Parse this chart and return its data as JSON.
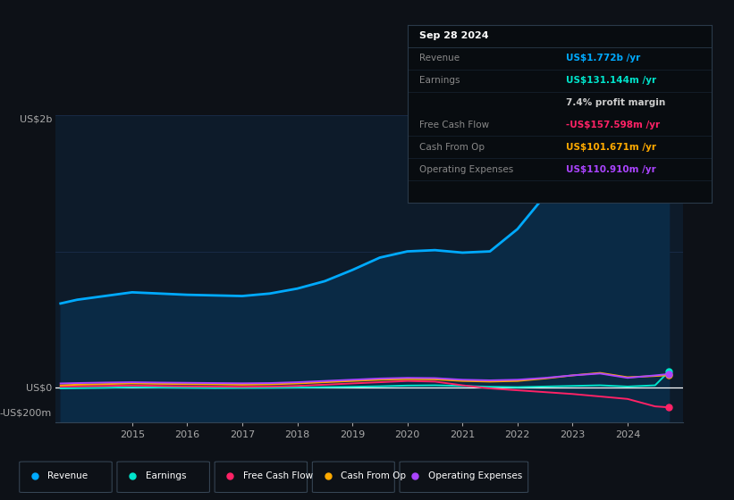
{
  "bg_color": "#0d1117",
  "plot_bg_color": "#0d1b2a",
  "grid_color": "#1e3050",
  "ylabel_top": "US$2b",
  "ylabel_zero": "US$0",
  "ylabel_neg": "-US$200m",
  "ylim": [
    -280000000,
    2200000000
  ],
  "xlim_left": 2013.6,
  "xlim_right": 2025.0,
  "revenue_color": "#00aaff",
  "earnings_color": "#00e5cc",
  "fcf_color": "#ff2266",
  "cashop_color": "#ffaa00",
  "opex_color": "#aa44ff",
  "revenue_fill_color": "#0a2a45",
  "legend_items": [
    "Revenue",
    "Earnings",
    "Free Cash Flow",
    "Cash From Op",
    "Operating Expenses"
  ],
  "x_years": [
    2013.7,
    2014.0,
    2014.5,
    2015.0,
    2015.5,
    2016.0,
    2016.5,
    2017.0,
    2017.5,
    2018.0,
    2018.5,
    2019.0,
    2019.5,
    2020.0,
    2020.5,
    2021.0,
    2021.5,
    2022.0,
    2022.5,
    2023.0,
    2023.5,
    2024.0,
    2024.5,
    2024.75
  ],
  "rev": [
    680000000,
    710000000,
    740000000,
    770000000,
    760000000,
    750000000,
    745000000,
    740000000,
    760000000,
    800000000,
    860000000,
    950000000,
    1050000000,
    1100000000,
    1110000000,
    1090000000,
    1100000000,
    1280000000,
    1550000000,
    1820000000,
    1870000000,
    1600000000,
    1700000000,
    1772000000
  ],
  "earn": [
    -5000000,
    -3000000,
    0,
    5000000,
    2000000,
    0,
    -2000000,
    -1000000,
    0,
    2000000,
    5000000,
    8000000,
    12000000,
    18000000,
    20000000,
    15000000,
    8000000,
    5000000,
    10000000,
    15000000,
    20000000,
    10000000,
    20000000,
    131144000
  ],
  "fcf": [
    10000000,
    12000000,
    15000000,
    18000000,
    15000000,
    12000000,
    10000000,
    8000000,
    10000000,
    15000000,
    25000000,
    35000000,
    45000000,
    55000000,
    50000000,
    20000000,
    -5000000,
    -20000000,
    -35000000,
    -50000000,
    -70000000,
    -90000000,
    -150000000,
    -157598000
  ],
  "cashop": [
    20000000,
    25000000,
    30000000,
    35000000,
    32000000,
    30000000,
    28000000,
    25000000,
    28000000,
    35000000,
    45000000,
    55000000,
    65000000,
    70000000,
    68000000,
    55000000,
    50000000,
    55000000,
    75000000,
    100000000,
    120000000,
    85000000,
    95000000,
    101671000
  ],
  "opex": [
    35000000,
    38000000,
    42000000,
    45000000,
    42000000,
    40000000,
    38000000,
    36000000,
    38000000,
    45000000,
    55000000,
    65000000,
    75000000,
    80000000,
    78000000,
    65000000,
    60000000,
    65000000,
    80000000,
    100000000,
    115000000,
    80000000,
    100000000,
    110910000
  ],
  "x_ticks": [
    2015,
    2016,
    2017,
    2018,
    2019,
    2020,
    2021,
    2022,
    2023,
    2024
  ],
  "tooltip_bg": "#080c10",
  "tooltip_border": "#2a3a4a",
  "tooltip_date": "Sep 28 2024",
  "tooltip_rows": [
    {
      "label": "Revenue",
      "value": "US$1.772b /yr",
      "value_color": "#00aaff"
    },
    {
      "label": "Earnings",
      "value": "US$131.144m /yr",
      "value_color": "#00e5cc"
    },
    {
      "label": "",
      "value": "7.4% profit margin",
      "value_color": "#cccccc"
    },
    {
      "label": "Free Cash Flow",
      "value": "-US$157.598m /yr",
      "value_color": "#ff2266"
    },
    {
      "label": "Cash From Op",
      "value": "US$101.671m /yr",
      "value_color": "#ffaa00"
    },
    {
      "label": "Operating Expenses",
      "value": "US$110.910m /yr",
      "value_color": "#aa44ff"
    }
  ]
}
